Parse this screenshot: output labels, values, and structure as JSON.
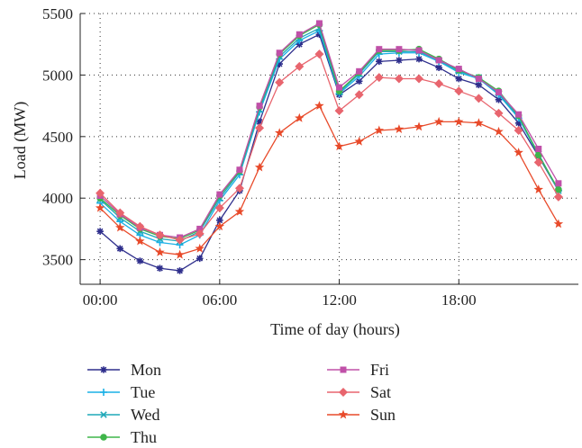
{
  "chart_data": {
    "type": "line",
    "title": "",
    "xlabel": "Time of day (hours)",
    "ylabel": "Load (MW)",
    "x": [
      0,
      1,
      2,
      3,
      4,
      5,
      6,
      7,
      8,
      9,
      10,
      11,
      12,
      13,
      14,
      15,
      16,
      17,
      18,
      19,
      20,
      21,
      22,
      23
    ],
    "xlim": [
      -1,
      24
    ],
    "ylim": [
      3300,
      5500
    ],
    "x_ticks": [
      {
        "value": 0,
        "label": "00:00"
      },
      {
        "value": 6,
        "label": "06:00"
      },
      {
        "value": 12,
        "label": "12:00"
      },
      {
        "value": 18,
        "label": "18:00"
      }
    ],
    "y_ticks": [
      {
        "value": 3500,
        "label": "3500"
      },
      {
        "value": 4000,
        "label": "4000"
      },
      {
        "value": 4500,
        "label": "4500"
      },
      {
        "value": 5000,
        "label": "5000"
      },
      {
        "value": 5500,
        "label": "5500"
      }
    ],
    "grid": "dotted",
    "legend_position": "bottom",
    "series": [
      {
        "name": "Mon",
        "color": "#2e2e8c",
        "marker": "asterisk",
        "values": [
          3730,
          3590,
          3490,
          3430,
          3410,
          3510,
          3820,
          4060,
          4620,
          5090,
          5250,
          5330,
          4840,
          4950,
          5110,
          5120,
          5130,
          5060,
          4970,
          4920,
          4800,
          4610,
          4340,
          4060
        ]
      },
      {
        "name": "Tue",
        "color": "#1ab0e6",
        "marker": "plus",
        "values": [
          3960,
          3810,
          3700,
          3640,
          3620,
          3700,
          3980,
          4190,
          4700,
          5130,
          5280,
          5360,
          4850,
          4990,
          5170,
          5180,
          5180,
          5110,
          5020,
          4970,
          4840,
          4650,
          4350,
          4060
        ]
      },
      {
        "name": "Wed",
        "color": "#1fa8b8",
        "marker": "cross",
        "values": [
          3990,
          3840,
          3730,
          3670,
          3650,
          3730,
          4000,
          4210,
          4720,
          5150,
          5300,
          5380,
          4860,
          5010,
          5190,
          5190,
          5190,
          5120,
          5030,
          4980,
          4850,
          4660,
          4360,
          4060
        ]
      },
      {
        "name": "Thu",
        "color": "#3fb54a",
        "marker": "circle",
        "values": [
          4000,
          3860,
          3750,
          3690,
          3670,
          3740,
          4020,
          4220,
          4740,
          5170,
          5320,
          5410,
          4870,
          5020,
          5200,
          5200,
          5210,
          5130,
          5040,
          4980,
          4870,
          4670,
          4350,
          4070
        ]
      },
      {
        "name": "Fri",
        "color": "#c050a8",
        "marker": "square",
        "values": [
          4020,
          3870,
          3760,
          3700,
          3680,
          3750,
          4030,
          4230,
          4750,
          5180,
          5330,
          5420,
          4900,
          5030,
          5210,
          5210,
          5200,
          5120,
          5050,
          4970,
          4860,
          4680,
          4400,
          4120
        ]
      },
      {
        "name": "Sat",
        "color": "#e8656e",
        "marker": "diamond",
        "values": [
          4040,
          3880,
          3770,
          3700,
          3660,
          3710,
          3920,
          4080,
          4570,
          4940,
          5070,
          5170,
          4710,
          4840,
          4980,
          4970,
          4970,
          4930,
          4870,
          4810,
          4690,
          4550,
          4290,
          4010
        ]
      },
      {
        "name": "Sun",
        "color": "#e84a2a",
        "marker": "star",
        "values": [
          3920,
          3760,
          3650,
          3560,
          3540,
          3590,
          3770,
          3890,
          4250,
          4530,
          4650,
          4750,
          4420,
          4460,
          4550,
          4560,
          4580,
          4620,
          4620,
          4610,
          4540,
          4370,
          4070,
          3790
        ]
      }
    ]
  }
}
